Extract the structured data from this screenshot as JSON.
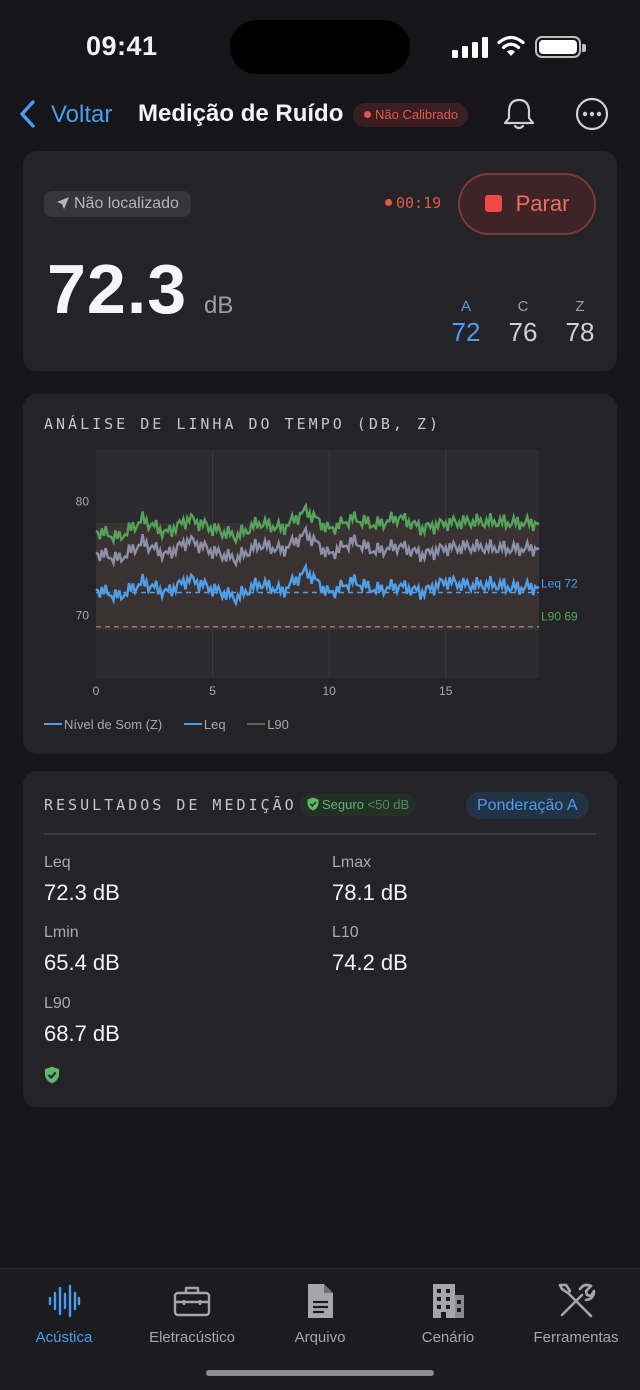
{
  "status_bar": {
    "time": "09:41"
  },
  "nav": {
    "back_label": "Voltar",
    "title": "Medição de Ruído",
    "calibration_badge": "Não Calibrado"
  },
  "meter": {
    "location": "Não localizado",
    "timer": "00:19",
    "stop_label": "Parar",
    "value": "72.3",
    "unit": "dB",
    "weightings": [
      {
        "label": "A",
        "value": "72",
        "active": true
      },
      {
        "label": "C",
        "value": "76",
        "active": false
      },
      {
        "label": "Z",
        "value": "78",
        "active": false
      }
    ]
  },
  "timeline": {
    "title": "ANÁLISE DE LINHA DO TEMPO (DB, Z)",
    "legend": [
      "Nível de Som (Z)",
      "Leq",
      "L90"
    ],
    "leq_label": "Leq 72",
    "l90_label": "L90 69"
  },
  "chart_data": {
    "type": "line",
    "title": "ANÁLISE DE LINHA DO TEMPO (DB, Z)",
    "xlabel": "",
    "ylabel": "",
    "x_ticks": [
      "0",
      "5",
      "10",
      "15"
    ],
    "y_ticks": [
      "70",
      "80"
    ],
    "xlim": [
      0,
      19
    ],
    "ylim": [
      64.5,
      84.5
    ],
    "band": {
      "low": 68.7,
      "high": 78.1
    },
    "x": [
      0,
      1,
      2,
      3,
      4,
      5,
      6,
      7,
      8,
      9,
      10,
      11,
      12,
      13,
      14,
      15,
      16,
      17,
      18,
      19
    ],
    "series": [
      {
        "name": "Nível de Som (Z)",
        "color": "#4f9ee8",
        "values": [
          72.3,
          71.6,
          72.9,
          72.0,
          73.2,
          72.3,
          71.5,
          72.8,
          72.1,
          73.9,
          71.9,
          73.0,
          72.2,
          72.6,
          72.0,
          73.0,
          72.6,
          72.7,
          72.4,
          72.5
        ]
      },
      {
        "color": "#8b8fa8",
        "values": [
          75.5,
          74.9,
          76.4,
          75.3,
          76.6,
          75.6,
          74.9,
          76.2,
          75.7,
          77.2,
          75.3,
          76.5,
          75.6,
          76.1,
          75.3,
          75.9,
          76.0,
          75.9,
          75.8,
          75.9
        ]
      },
      {
        "color": "#55a35b",
        "values": [
          77.4,
          76.8,
          78.4,
          77.2,
          78.5,
          77.6,
          76.9,
          78.1,
          77.6,
          79.2,
          77.5,
          78.5,
          77.9,
          78.6,
          77.6,
          78.1,
          78.2,
          78.2,
          78.1,
          78.1
        ]
      },
      {
        "name": "Leq",
        "color": "#4f9ee8",
        "dashed": true,
        "values": [
          72,
          72,
          72,
          72,
          72,
          72,
          72,
          72,
          72,
          72,
          72,
          72,
          72,
          72,
          72,
          72,
          72,
          72,
          72,
          72
        ]
      },
      {
        "name": "L90",
        "color": "#8a7f76",
        "dashed": true,
        "values": [
          69,
          69,
          69,
          69,
          69,
          69,
          69,
          69,
          69,
          69,
          69,
          69,
          69,
          69,
          69,
          69,
          69,
          69,
          69,
          69
        ]
      }
    ]
  },
  "results": {
    "title": "RESULTADOS DE MEDIÇÃO",
    "safe_badge": "Seguro",
    "safe_threshold": "<50 dB",
    "weighting_pill": "Ponderação A",
    "metrics": [
      {
        "key": "Leq",
        "value": "72.3 dB"
      },
      {
        "key": "Lmax",
        "value": "78.1 dB"
      },
      {
        "key": "Lmin",
        "value": "65.4 dB"
      },
      {
        "key": "L10",
        "value": "74.2 dB"
      },
      {
        "key": "L90",
        "value": "68.7 dB"
      }
    ]
  },
  "tabs": [
    {
      "label": "Acústica",
      "icon": "waveform-icon",
      "active": true
    },
    {
      "label": "Eletracústico",
      "icon": "toolbox-icon",
      "active": false
    },
    {
      "label": "Arquivo",
      "icon": "document-icon",
      "active": false
    },
    {
      "label": "Cenário",
      "icon": "building-icon",
      "active": false
    },
    {
      "label": "Ferramentas",
      "icon": "tools-icon",
      "active": false
    }
  ],
  "colors": {
    "accent": "#4a9df0",
    "alert": "#e2574c",
    "safe": "#5bb769",
    "background": "#16161a",
    "card": "#242428"
  }
}
